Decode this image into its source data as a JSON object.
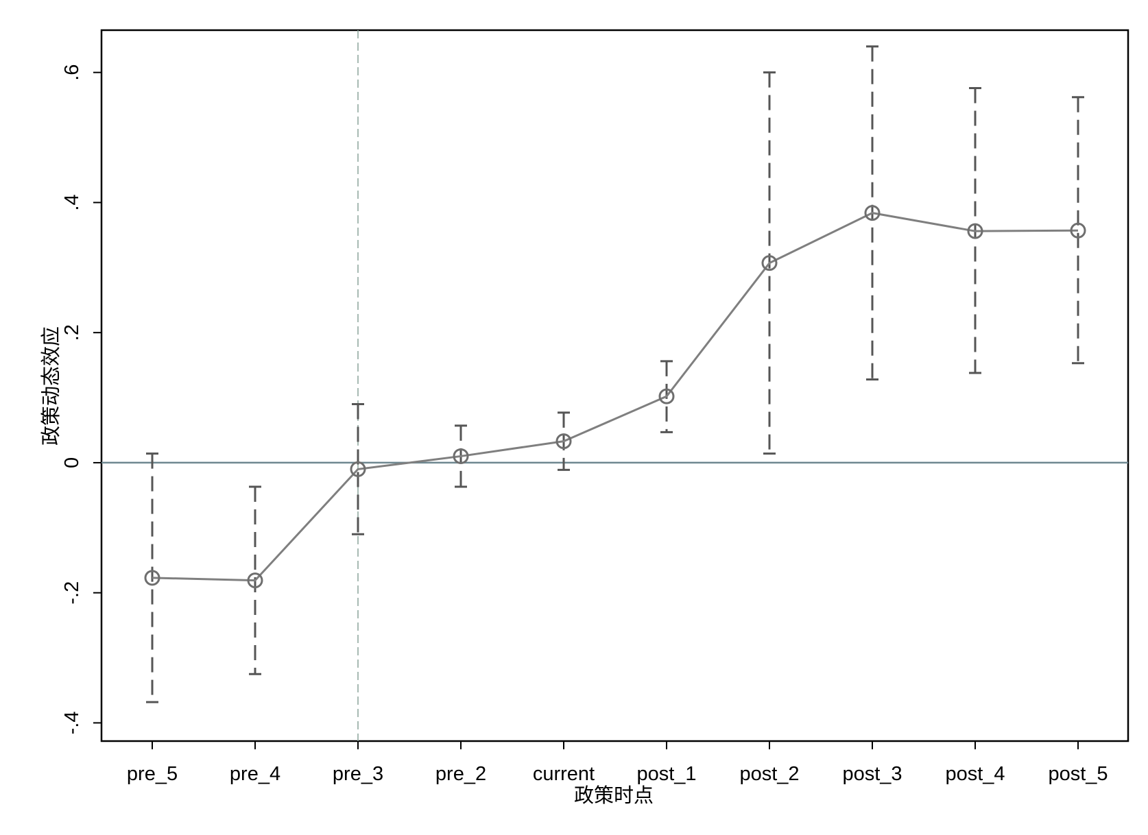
{
  "chart_data": {
    "type": "line",
    "title": "",
    "xlabel": "政策时点",
    "ylabel": "政策动态效应",
    "categories": [
      "pre_5",
      "pre_4",
      "pre_3",
      "pre_2",
      "current",
      "post_1",
      "post_2",
      "post_3",
      "post_4",
      "post_5"
    ],
    "series": [
      {
        "values": [
          -0.177,
          -0.181,
          -0.01,
          0.01,
          0.033,
          0.102,
          0.307,
          0.384,
          0.356,
          0.357
        ],
        "ci_lower": [
          -0.368,
          -0.325,
          -0.11,
          -0.037,
          -0.011,
          0.047,
          0.014,
          0.128,
          0.138,
          0.153
        ],
        "ci_upper": [
          0.014,
          -0.037,
          0.09,
          0.057,
          0.077,
          0.156,
          0.6,
          0.64,
          0.576,
          0.562
        ]
      }
    ],
    "ylim": [
      -0.428,
      0.665
    ],
    "yticks": [
      -0.4,
      -0.2,
      0,
      0.2,
      0.4,
      0.6
    ],
    "ytick_labels": [
      "-.4",
      "-.2",
      "0",
      ".2",
      ".4",
      ".6"
    ],
    "reference_line_y": 0,
    "reference_line_x_category": "pre_3",
    "grid": false,
    "legend": "none",
    "colors": {
      "line": "#7f7f7f",
      "marker": "#6e6e6e",
      "errorbar": "#555555",
      "hline": "#6e8790",
      "vline": "#8aa39a",
      "frame": "#000000"
    }
  }
}
